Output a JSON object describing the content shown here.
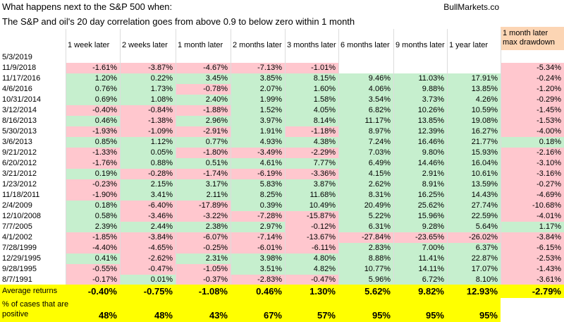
{
  "header": {
    "title_line1": "What happens next to the S&P 500 when:",
    "title_line2": "The S&P and oil's 20 day correlation goes from above 0.9 to below zero within 1 month",
    "brand": "BullMarkets.co",
    "drawdown_label": "1 month later max drawdown"
  },
  "columns": [
    "1 week later",
    "2 weeks later",
    "1 month later",
    "2 months later",
    "3 months later",
    "6 months later",
    "9 months later",
    "1 year later"
  ],
  "colors": {
    "positive": "#c6efce",
    "negative": "#ffc7ce",
    "highlight": "#ffff00",
    "header_peach": "#fcd5b4"
  },
  "rows": [
    {
      "date": "5/3/2019",
      "values": [
        "",
        "",
        "",
        "",
        "",
        "",
        "",
        ""
      ],
      "dd": ""
    },
    {
      "date": "11/9/2018",
      "values": [
        "-1.61%",
        "-3.87%",
        "-4.67%",
        "-7.13%",
        "-1.01%",
        "",
        "",
        ""
      ],
      "dd": "-5.34%"
    },
    {
      "date": "11/17/2016",
      "values": [
        "1.20%",
        "0.22%",
        "3.45%",
        "3.85%",
        "8.15%",
        "9.46%",
        "11.03%",
        "17.91%"
      ],
      "dd": "-0.24%"
    },
    {
      "date": "4/6/2016",
      "values": [
        "0.76%",
        "1.73%",
        "-0.78%",
        "2.07%",
        "1.60%",
        "4.06%",
        "9.88%",
        "13.85%"
      ],
      "dd": "-1.20%"
    },
    {
      "date": "10/31/2014",
      "values": [
        "0.69%",
        "1.08%",
        "2.40%",
        "1.99%",
        "1.58%",
        "3.54%",
        "3.73%",
        "4.26%"
      ],
      "dd": "-0.29%"
    },
    {
      "date": "3/12/2014",
      "values": [
        "-0.40%",
        "-0.84%",
        "-1.88%",
        "1.52%",
        "4.05%",
        "6.82%",
        "10.26%",
        "10.59%"
      ],
      "dd": "-1.45%"
    },
    {
      "date": "8/16/2013",
      "values": [
        "0.46%",
        "-1.38%",
        "2.96%",
        "3.97%",
        "8.14%",
        "11.17%",
        "13.85%",
        "19.08%"
      ],
      "dd": "-1.53%"
    },
    {
      "date": "5/30/2013",
      "values": [
        "-1.93%",
        "-1.09%",
        "-2.91%",
        "1.91%",
        "-1.18%",
        "8.97%",
        "12.39%",
        "16.27%"
      ],
      "dd": "-4.00%"
    },
    {
      "date": "3/6/2013",
      "values": [
        "0.85%",
        "1.12%",
        "0.77%",
        "4.93%",
        "4.38%",
        "7.24%",
        "16.46%",
        "21.77%"
      ],
      "dd": "0.18%"
    },
    {
      "date": "9/21/2012",
      "values": [
        "-1.33%",
        "0.05%",
        "-1.80%",
        "-3.49%",
        "-2.29%",
        "7.03%",
        "9.80%",
        "15.93%"
      ],
      "dd": "-2.16%"
    },
    {
      "date": "6/20/2012",
      "values": [
        "-1.76%",
        "0.88%",
        "0.51%",
        "4.61%",
        "7.77%",
        "6.49%",
        "14.46%",
        "16.04%"
      ],
      "dd": "-3.10%"
    },
    {
      "date": "3/21/2012",
      "values": [
        "0.19%",
        "-0.28%",
        "-1.74%",
        "-6.19%",
        "-3.36%",
        "4.15%",
        "2.91%",
        "10.61%"
      ],
      "dd": "-3.16%"
    },
    {
      "date": "1/23/2012",
      "values": [
        "-0.23%",
        "2.15%",
        "3.17%",
        "5.83%",
        "3.87%",
        "2.62%",
        "8.91%",
        "13.59%"
      ],
      "dd": "-0.27%"
    },
    {
      "date": "11/18/2011",
      "values": [
        "-1.90%",
        "3.41%",
        "2.11%",
        "8.25%",
        "11.68%",
        "8.31%",
        "16.25%",
        "14.43%"
      ],
      "dd": "-4.69%"
    },
    {
      "date": "2/4/2009",
      "values": [
        "0.18%",
        "-6.40%",
        "-17.89%",
        "0.39%",
        "10.49%",
        "20.49%",
        "25.62%",
        "27.74%"
      ],
      "dd": "-10.68%"
    },
    {
      "date": "12/10/2008",
      "values": [
        "0.58%",
        "-3.46%",
        "-3.22%",
        "-7.28%",
        "-15.87%",
        "5.22%",
        "15.96%",
        "22.59%"
      ],
      "dd": "-4.01%"
    },
    {
      "date": "7/7/2005",
      "values": [
        "2.39%",
        "2.44%",
        "2.38%",
        "2.97%",
        "-0.12%",
        "6.31%",
        "9.28%",
        "5.64%"
      ],
      "dd": "1.17%"
    },
    {
      "date": "4/1/2002",
      "values": [
        "-1.85%",
        "-3.84%",
        "-6.07%",
        "-7.14%",
        "-13.67%",
        "-27.84%",
        "-23.65%",
        "-26.02%"
      ],
      "dd": "-3.84%"
    },
    {
      "date": "7/28/1999",
      "values": [
        "-4.40%",
        "-4.65%",
        "-0.25%",
        "-6.01%",
        "-6.11%",
        "2.83%",
        "7.00%",
        "6.37%"
      ],
      "dd": "-6.15%"
    },
    {
      "date": "12/29/1995",
      "values": [
        "0.41%",
        "-2.62%",
        "2.31%",
        "3.98%",
        "4.80%",
        "8.88%",
        "11.41%",
        "22.87%"
      ],
      "dd": "-2.53%"
    },
    {
      "date": "9/28/1995",
      "values": [
        "-0.55%",
        "-0.47%",
        "-1.05%",
        "3.51%",
        "4.82%",
        "10.77%",
        "14.11%",
        "17.07%"
      ],
      "dd": "-1.43%"
    },
    {
      "date": "8/7/1991",
      "values": [
        "-0.17%",
        "0.01%",
        "-0.37%",
        "-2.83%",
        "-0.47%",
        "5.96%",
        "6.72%",
        "8.10%"
      ],
      "dd": "-3.61%"
    }
  ],
  "summary": {
    "avg_label": "Average returns",
    "avg_values": [
      "-0.40%",
      "-0.75%",
      "-1.08%",
      "0.46%",
      "1.30%",
      "5.62%",
      "9.82%",
      "12.93%"
    ],
    "avg_dd": "-2.79%",
    "pct_label_line1": "% of cases that are",
    "pct_label_line2": "positive",
    "pct_values": [
      "48%",
      "48%",
      "43%",
      "67%",
      "57%",
      "95%",
      "95%",
      "95%"
    ]
  }
}
